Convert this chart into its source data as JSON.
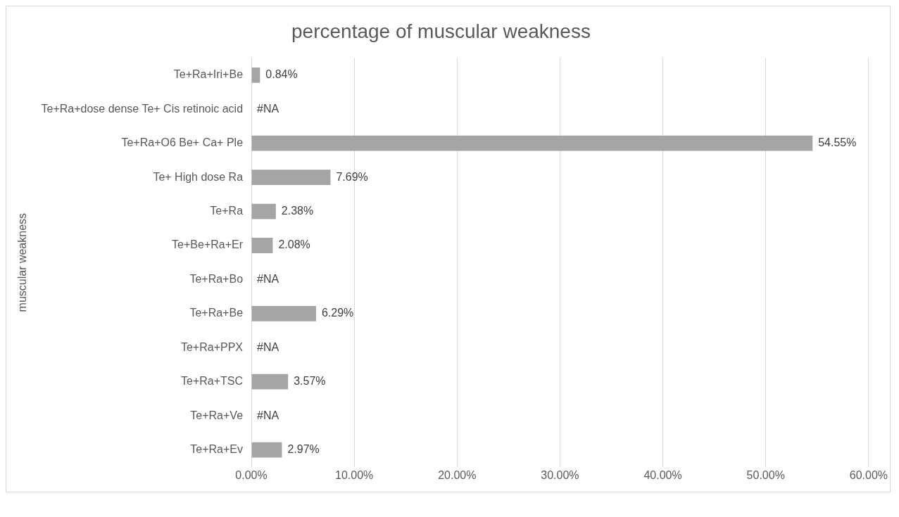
{
  "chart_data": {
    "type": "bar",
    "orientation": "horizontal",
    "title": "percentage of muscular weakness",
    "ylabel": "muscular weakness",
    "categories": [
      "Te+Ra+Iri+Be",
      "Te+Ra+dose dense Te+ Cis retinoic acid",
      "Te+Ra+O6 Be+ Ca+ Ple",
      "Te+ High dose Ra",
      "Te+Ra",
      "Te+Be+Ra+Er",
      "Te+Ra+Bo",
      "Te+Ra+Be",
      "Te+Ra+PPX",
      "Te+Ra+TSC",
      "Te+Ra+Ve",
      "Te+Ra+Ev"
    ],
    "values": [
      0.84,
      null,
      54.55,
      7.69,
      2.38,
      2.08,
      null,
      6.29,
      null,
      3.57,
      null,
      2.97
    ],
    "value_labels": [
      "0.84%",
      "#NA",
      "54.55%",
      "7.69%",
      "2.38%",
      "2.08%",
      "#NA",
      "6.29%",
      "#NA",
      "3.57%",
      "#NA",
      "2.97%"
    ],
    "color": "#a5a5a5",
    "xlim": [
      0,
      60
    ],
    "xticks": [
      {
        "value": 0,
        "label": "0.00%"
      },
      {
        "value": 10,
        "label": "10.00%"
      },
      {
        "value": 20,
        "label": "20.00%"
      },
      {
        "value": 30,
        "label": "30.00%"
      },
      {
        "value": 40,
        "label": "40.00%"
      },
      {
        "value": 50,
        "label": "50.00%"
      },
      {
        "value": 60,
        "label": "60.00%"
      }
    ],
    "grid": "x",
    "legend": false
  }
}
